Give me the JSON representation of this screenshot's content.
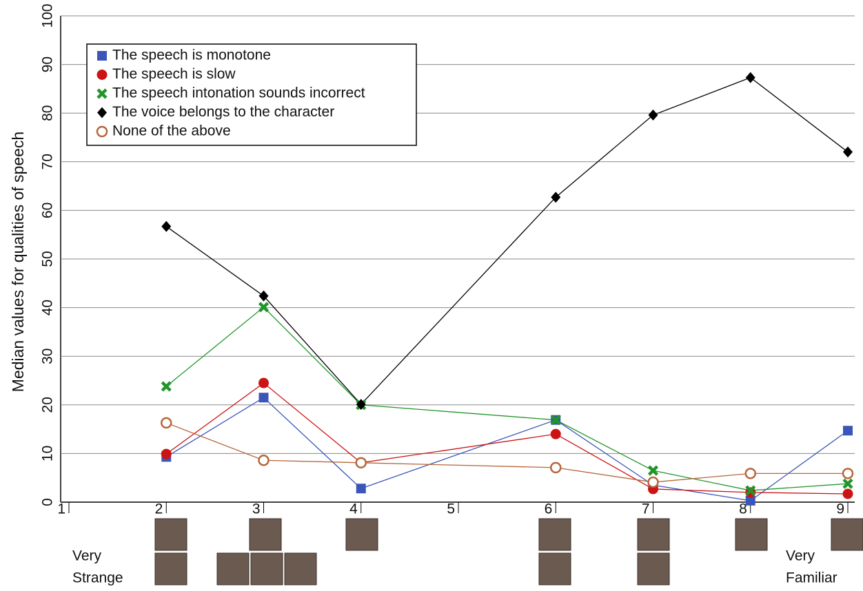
{
  "chart_data": {
    "type": "line",
    "y_label": "Median values for qualities of speech",
    "x": [
      2,
      3,
      4,
      6,
      7,
      8,
      9
    ],
    "xlim": [
      1,
      9
    ],
    "xticks": [
      1,
      2,
      3,
      4,
      5,
      6,
      7,
      8,
      9
    ],
    "ylim": [
      0,
      100
    ],
    "yticks": [
      0,
      10,
      20,
      30,
      40,
      50,
      60,
      70,
      80,
      90,
      100
    ],
    "grid": true,
    "legend": "upper left",
    "annotations": [
      "Very",
      "Strange",
      "Very",
      "Familiar"
    ],
    "series": [
      {
        "name": "The speech is monotone",
        "color": "#3a56b8",
        "marker": "square",
        "values": [
          9.3,
          21.5,
          2.8,
          16.9,
          3.5,
          0.3,
          14.7
        ]
      },
      {
        "name": "The speech is slow",
        "color": "#cc1414",
        "marker": "circle",
        "values": [
          9.9,
          24.5,
          8.1,
          14.0,
          2.7,
          2.0,
          1.7
        ]
      },
      {
        "name": "The speech intonation sounds incorrect",
        "color": "#22952a",
        "marker": "x",
        "values": [
          23.8,
          40.1,
          20.0,
          16.9,
          6.5,
          2.4,
          3.8
        ]
      },
      {
        "name": "The voice belongs to the character",
        "color": "#000000",
        "marker": "diamond",
        "values": [
          56.7,
          42.4,
          20.1,
          62.7,
          79.6,
          87.3,
          72.0
        ]
      },
      {
        "name": "None of the above",
        "color": "#b5653a",
        "marker": "open-circle",
        "values": [
          16.3,
          8.6,
          8.1,
          7.1,
          4.1,
          5.9,
          5.9
        ]
      }
    ]
  }
}
